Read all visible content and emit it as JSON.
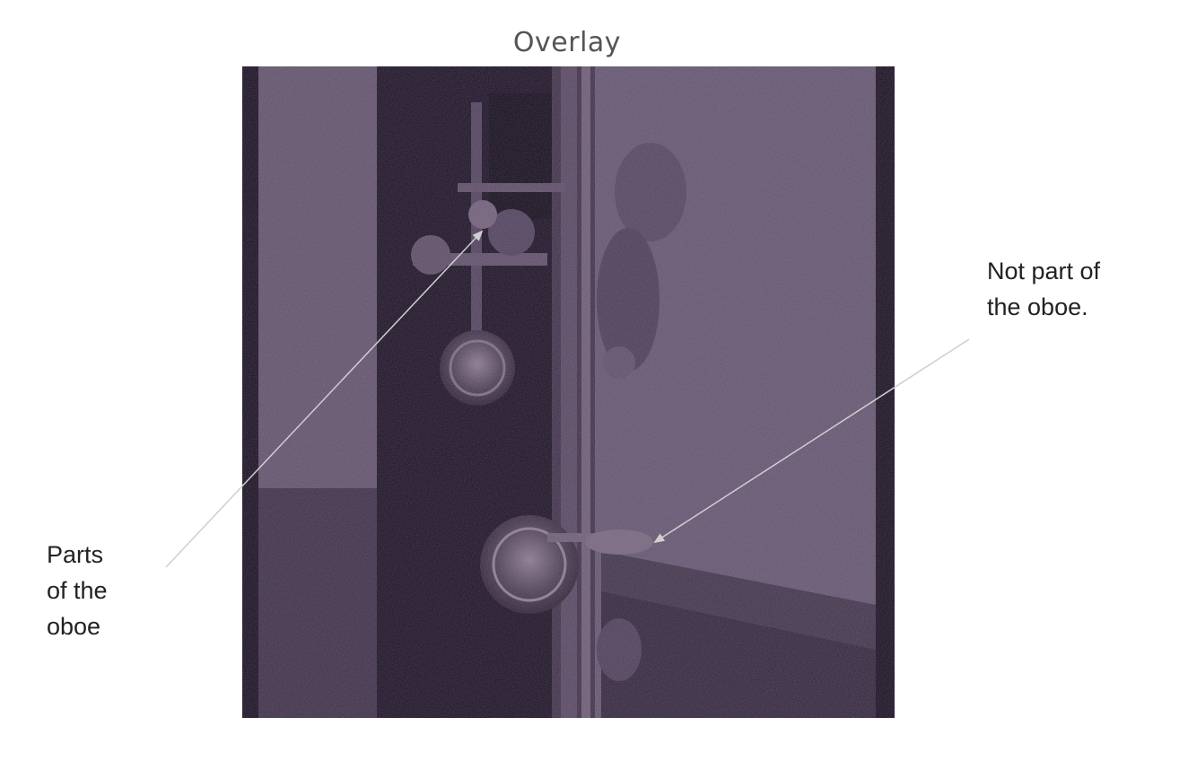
{
  "title": "Overlay",
  "annotations": {
    "left_label": "Parts\nof the\noboe",
    "right_label": "Not part of\nthe oboe."
  },
  "colors": {
    "background": "#ffffff",
    "overlay_tint": "#5e5068",
    "dark_band": "#160f1e",
    "arrow": "#c8c8c8"
  }
}
